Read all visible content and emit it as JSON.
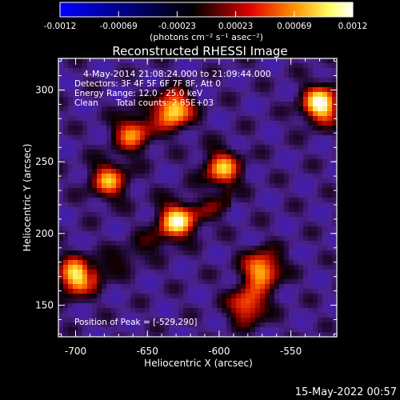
{
  "chart_data": {
    "type": "heatmap",
    "title": "Reconstructed RHESSI Image",
    "xlabel": "Heliocentric X (arcsec)",
    "ylabel": "Heliocentric Y (arcsec)",
    "xlim": [
      -712,
      -518
    ],
    "ylim": [
      128,
      322
    ],
    "xticks": [
      -700,
      -650,
      -600,
      -550
    ],
    "yticks": [
      150,
      200,
      250,
      300
    ],
    "colorbar": {
      "min": -0.0012,
      "max": 0.0012,
      "tick_labels": [
        "-0.0012",
        "-0.00069",
        "-0.00023",
        "0.00023",
        "0.00069",
        "0.0012"
      ],
      "units_label": "(photons cm⁻² s⁻¹ asec⁻²)",
      "colormap": [
        "#0000ff",
        "#000000",
        "#ff6000",
        "#ffff80",
        "#ffffff"
      ]
    },
    "annotations": {
      "time_range": "4-May-2014 21:08:24.000 to 21:09:44.000",
      "detectors": "Detectors: 3F 4F 5F 6F 7F 8F, Att 0",
      "energy_range": "Energy Range: 12.0 - 25.0 keV",
      "algorithm": "Clean",
      "total_counts": "Total counts: 2.85E+03",
      "peak_position": "Position of Peak = [-529,290]"
    },
    "peak": {
      "x": -529,
      "y": 290
    },
    "sources": [
      {
        "x": -529,
        "y": 290,
        "intensity": 0.0012
      },
      {
        "x": -632,
        "y": 286,
        "intensity": 0.0011
      },
      {
        "x": -700,
        "y": 170,
        "intensity": 0.00105
      },
      {
        "x": -570,
        "y": 175,
        "intensity": 0.0009
      },
      {
        "x": -630,
        "y": 210,
        "intensity": 0.0008
      },
      {
        "x": -598,
        "y": 245,
        "intensity": 0.0008
      },
      {
        "x": -677,
        "y": 237,
        "intensity": 0.00072
      },
      {
        "x": -660,
        "y": 270,
        "intensity": 0.0007
      },
      {
        "x": -580,
        "y": 150,
        "intensity": 0.0007
      }
    ]
  },
  "footer": {
    "timestamp": "15-May-2022 00:57"
  }
}
